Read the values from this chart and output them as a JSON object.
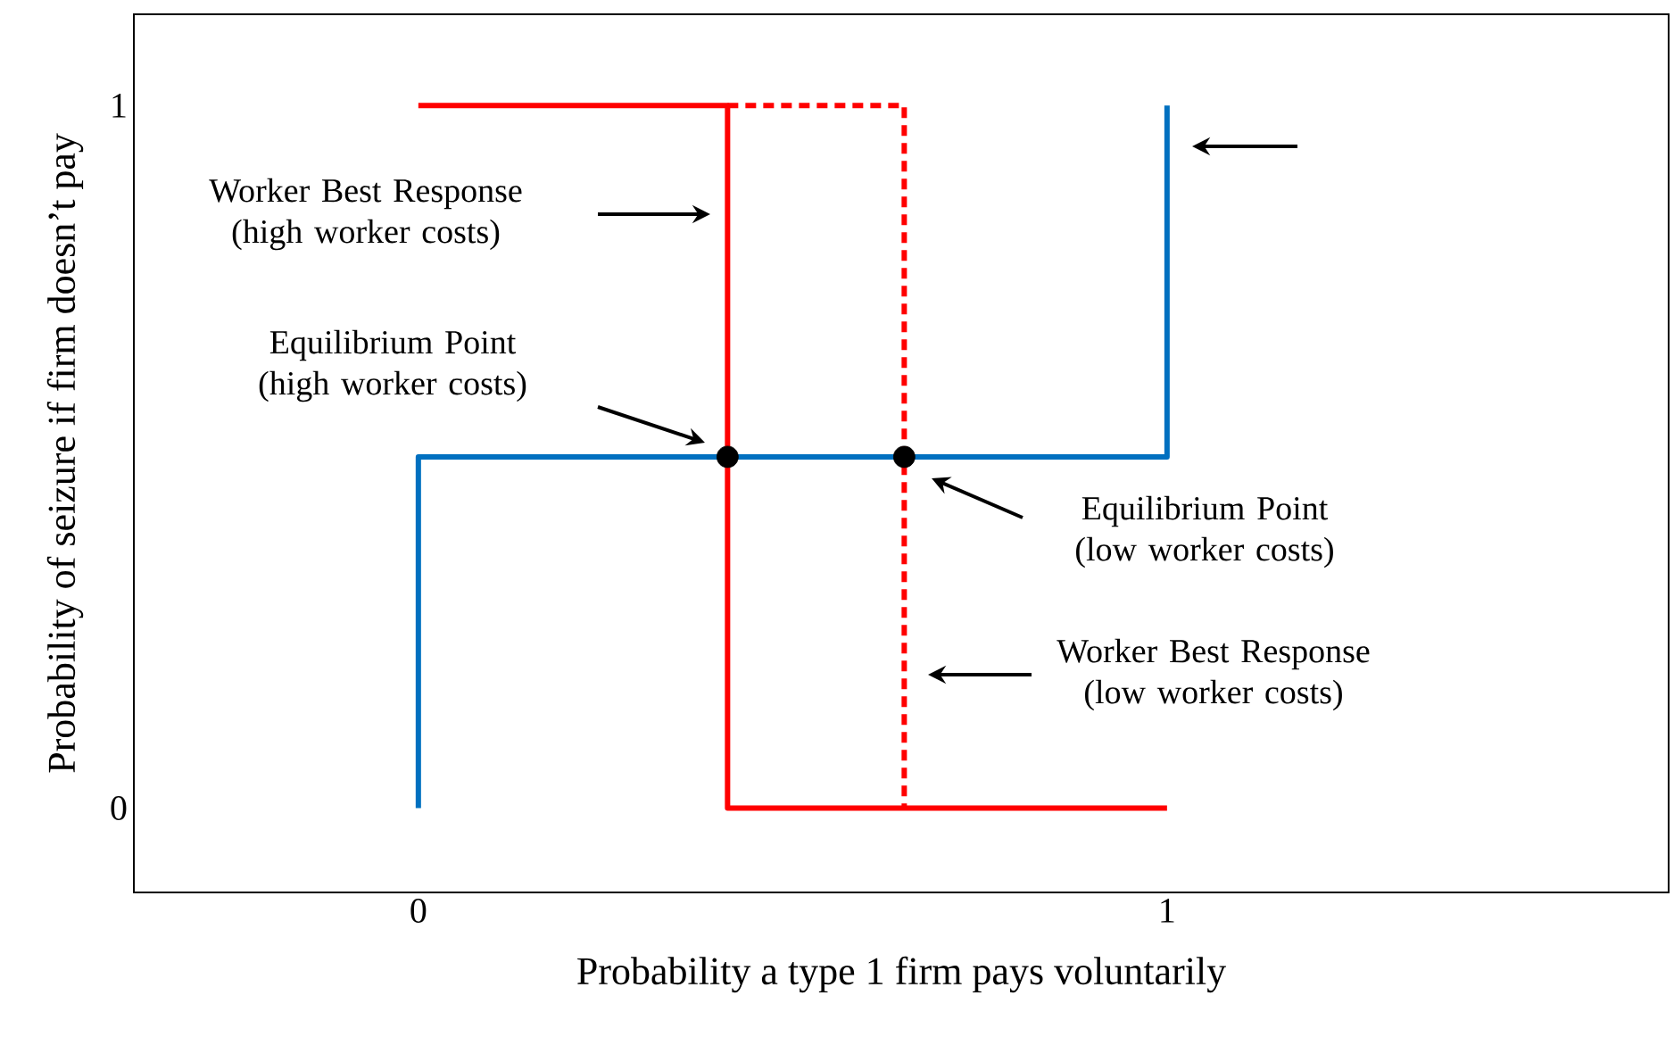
{
  "chart_data": {
    "type": "line",
    "xlabel": "Probability a type 1 firm pays voluntarily",
    "ylabel": "Probability of seizure if firm doesn’t pay",
    "xlim": [
      -0.38,
      1.67
    ],
    "ylim": [
      -0.12,
      1.13
    ],
    "xticks": [
      0,
      1
    ],
    "yticks": [
      0,
      1
    ],
    "grid": false,
    "series": [
      {
        "color": "#0070c0",
        "line_style": "solid",
        "marker": "none",
        "x": [
          0,
          0,
          1,
          1
        ],
        "values": [
          0,
          0.5,
          0.5,
          1
        ]
      },
      {
        "color": "#ff0000",
        "line_style": "solid",
        "marker": "none",
        "x": [
          0,
          0.413,
          0.413,
          1
        ],
        "values": [
          1,
          1,
          0,
          0
        ]
      },
      {
        "color": "#ff0000",
        "line_style": "dashed",
        "marker": "none",
        "x": [
          0.413,
          0.649,
          0.649
        ],
        "values": [
          1,
          1,
          0
        ]
      },
      {
        "type": "scatter",
        "color": "#000000",
        "marker": "circle",
        "x": [
          0.413,
          0.649
        ],
        "values": [
          0.5,
          0.5
        ]
      }
    ],
    "annotations": [
      "Worker Best Response (high worker costs)",
      "Equilibrium Point (high worker costs)",
      "Equilibrium Point (low worker costs)",
      "Worker Best Response (low worker costs)"
    ]
  }
}
